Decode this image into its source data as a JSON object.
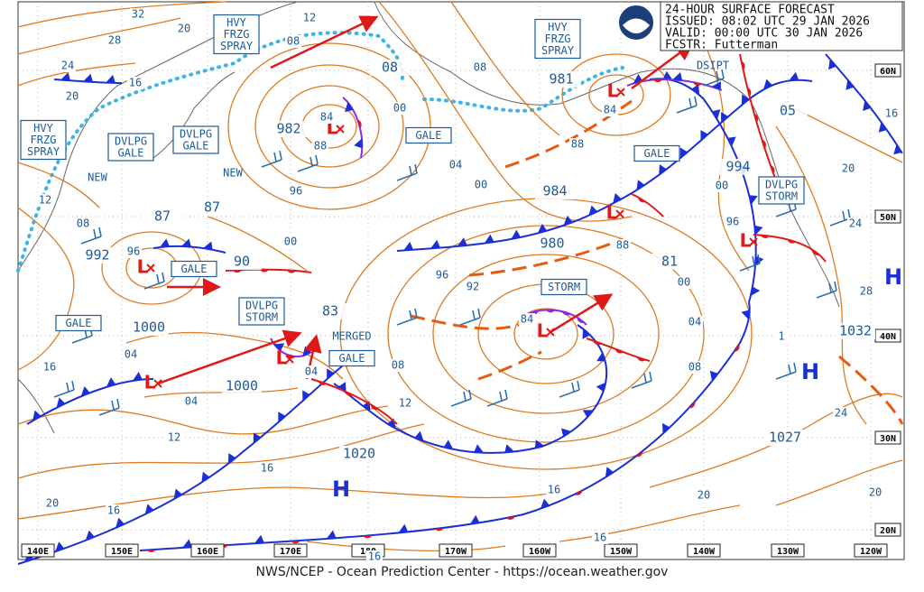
{
  "header": {
    "lines": [
      "24-HOUR SURFACE FORECAST",
      "ISSUED: 08:02 UTC 29 JAN 2026",
      "VALID:  00:00 UTC 30 JAN 2026",
      "FCSTR:  Futterman"
    ]
  },
  "footer": "NWS/NCEP - Ocean Prediction Center - https://ocean.weather.gov",
  "longitude_labels": [
    "140E",
    "150E",
    "160E",
    "170E",
    "180",
    "170W",
    "160W",
    "150W",
    "140W",
    "130W",
    "120W"
  ],
  "latitude_labels": [
    "60N",
    "50N",
    "40N",
    "30N",
    "20N"
  ],
  "pressure_labels": [
    "982",
    "981",
    "984",
    "980",
    "992",
    "1000",
    "1000",
    "1020",
    "1032",
    "1027",
    "994",
    "87",
    "87",
    "90",
    "83",
    "81",
    "05",
    "08"
  ],
  "isobar_labels": [
    "32",
    "28",
    "24",
    "20",
    "16",
    "12",
    "08",
    "12",
    "08",
    "16",
    "04",
    "04",
    "12",
    "16",
    "20",
    "16",
    "84",
    "88",
    "96",
    "00",
    "00",
    "04",
    "00",
    "08",
    "84",
    "88",
    "96",
    "96",
    "92",
    "84",
    "88",
    "00",
    "04",
    "08",
    "12",
    "08",
    "04",
    "96",
    "00",
    "24",
    "28",
    "24",
    "20",
    "16",
    "20",
    "20",
    "16",
    "16",
    "16",
    "1",
    "20"
  ],
  "annotations": [
    {
      "lines": [
        "HVY",
        "FRZG",
        "SPRAY"
      ]
    },
    {
      "lines": [
        "HVY",
        "FRZG",
        "SPRAY"
      ]
    },
    {
      "lines": [
        "HVY",
        "FRZG",
        "SPRAY"
      ]
    },
    {
      "lines": [
        "DVLPG",
        "GALE"
      ]
    },
    {
      "lines": [
        "DVLPG",
        "GALE"
      ]
    },
    {
      "lines": [
        "GALE"
      ]
    },
    {
      "lines": [
        "GALE"
      ]
    },
    {
      "lines": [
        "GALE"
      ]
    },
    {
      "lines": [
        "GALE"
      ]
    },
    {
      "lines": [
        "GALE"
      ]
    },
    {
      "lines": [
        "DVLPG",
        "STORM"
      ]
    },
    {
      "lines": [
        "DVLPG",
        "STORM"
      ]
    },
    {
      "lines": [
        "STORM"
      ]
    }
  ],
  "notes": [
    "NEW",
    "NEW",
    "MERGED",
    "DSIPT"
  ],
  "highs": [
    "H",
    "H",
    "H"
  ],
  "lows": [
    "L",
    "L",
    "L",
    "L",
    "L",
    "L",
    "L",
    "L"
  ]
}
